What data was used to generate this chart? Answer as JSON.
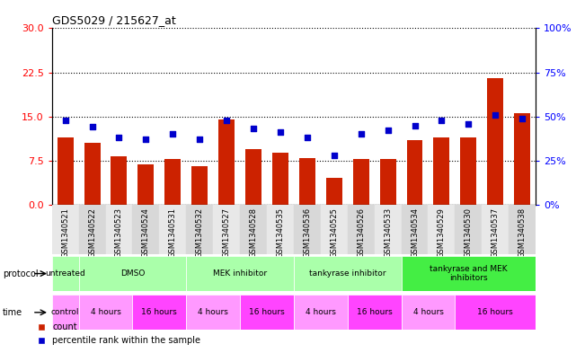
{
  "title": "GDS5029 / 215627_at",
  "samples": [
    "GSM1340521",
    "GSM1340522",
    "GSM1340523",
    "GSM1340524",
    "GSM1340531",
    "GSM1340532",
    "GSM1340527",
    "GSM1340528",
    "GSM1340535",
    "GSM1340536",
    "GSM1340525",
    "GSM1340526",
    "GSM1340533",
    "GSM1340534",
    "GSM1340529",
    "GSM1340530",
    "GSM1340537",
    "GSM1340538"
  ],
  "counts": [
    11.5,
    10.5,
    8.2,
    6.8,
    7.8,
    6.5,
    14.5,
    9.5,
    8.8,
    8.0,
    4.5,
    7.8,
    7.8,
    11.0,
    11.5,
    11.5,
    21.5,
    15.5
  ],
  "percentiles": [
    48,
    44,
    38,
    37,
    40,
    37,
    48,
    43,
    41,
    38,
    28,
    40,
    42,
    45,
    48,
    46,
    51,
    49
  ],
  "ylim_left": [
    0,
    30
  ],
  "ylim_right": [
    0,
    100
  ],
  "yticks_left": [
    0,
    7.5,
    15,
    22.5,
    30
  ],
  "yticks_right": [
    0,
    25,
    50,
    75,
    100
  ],
  "bar_color": "#cc2200",
  "dot_color": "#0000cc",
  "protocol_groups": [
    {
      "label": "untreated",
      "start": 0,
      "end": 1,
      "color": "#aaffaa"
    },
    {
      "label": "DMSO",
      "start": 1,
      "end": 5,
      "color": "#aaffaa"
    },
    {
      "label": "MEK inhibitor",
      "start": 5,
      "end": 9,
      "color": "#aaffaa"
    },
    {
      "label": "tankyrase inhibitor",
      "start": 9,
      "end": 13,
      "color": "#aaffaa"
    },
    {
      "label": "tankyrase and MEK\ninhibitors",
      "start": 13,
      "end": 18,
      "color": "#44ee44"
    }
  ],
  "time_groups": [
    {
      "label": "control",
      "start": 0,
      "end": 1,
      "color": "#ff99ff"
    },
    {
      "label": "4 hours",
      "start": 1,
      "end": 3,
      "color": "#ff99ff"
    },
    {
      "label": "16 hours",
      "start": 3,
      "end": 5,
      "color": "#ff44ff"
    },
    {
      "label": "4 hours",
      "start": 5,
      "end": 7,
      "color": "#ff99ff"
    },
    {
      "label": "16 hours",
      "start": 7,
      "end": 9,
      "color": "#ff44ff"
    },
    {
      "label": "4 hours",
      "start": 9,
      "end": 11,
      "color": "#ff99ff"
    },
    {
      "label": "16 hours",
      "start": 11,
      "end": 13,
      "color": "#ff44ff"
    },
    {
      "label": "4 hours",
      "start": 13,
      "end": 15,
      "color": "#ff99ff"
    },
    {
      "label": "16 hours",
      "start": 15,
      "end": 18,
      "color": "#ff44ff"
    }
  ],
  "legend_items": [
    {
      "label": "count",
      "color": "#cc2200",
      "marker": "s"
    },
    {
      "label": "percentile rank within the sample",
      "color": "#0000cc",
      "marker": "s"
    }
  ]
}
